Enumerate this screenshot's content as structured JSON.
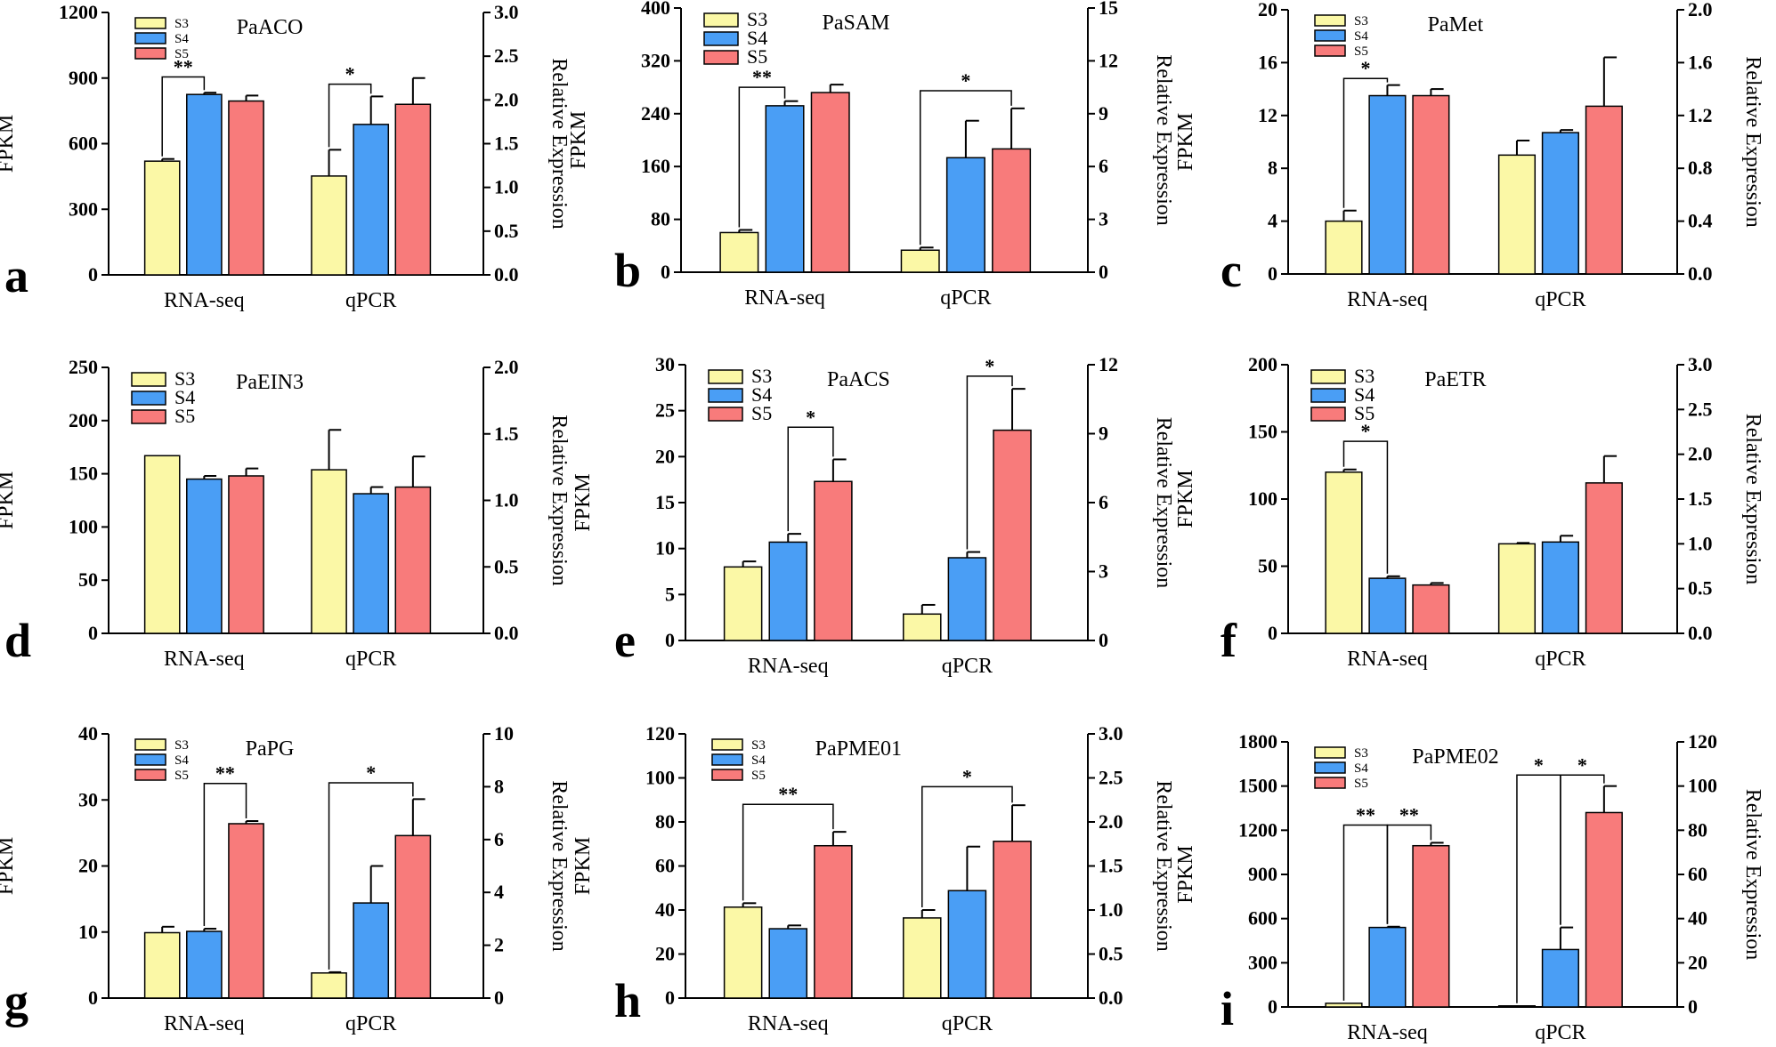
{
  "chart_data": [
    {
      "letter": "a",
      "title": "PaACO",
      "type": "bar",
      "ylabel_left": "FPKM",
      "ylabel_right": "Relative Expression",
      "yticks_left": [
        "0",
        "300",
        "600",
        "900",
        "1200"
      ],
      "ylim_left": [
        0,
        1200
      ],
      "yticks_right": [
        "0.0",
        "0.5",
        "1.0",
        "1.5",
        "2.0",
        "2.5",
        "3.0"
      ],
      "ylim_right": [
        0,
        3.0
      ],
      "categories": [
        "RNA-seq",
        "qPCR"
      ],
      "legend": [
        "S3",
        "S4",
        "S5"
      ],
      "legend_size": "small",
      "series": [
        {
          "name": "S3",
          "color": "#fbf8a6",
          "values": [
            520,
            1.13
          ],
          "errors": [
            10,
            0.3
          ]
        },
        {
          "name": "S4",
          "color": "#4a9ef5",
          "values": [
            825,
            1.72
          ],
          "errors": [
            8,
            0.32
          ]
        },
        {
          "name": "S5",
          "color": "#f87b7b",
          "values": [
            795,
            1.95
          ],
          "errors": [
            25,
            0.3
          ]
        }
      ],
      "significance": [
        {
          "group": 0,
          "from": 0,
          "to": 1,
          "label": "**",
          "y": 905
        },
        {
          "group": 1,
          "from": 0,
          "to": 1,
          "label": "*",
          "y": 2.18
        }
      ]
    },
    {
      "letter": "b",
      "title": "PaSAM",
      "type": "bar",
      "ylabel_left": "FPKM",
      "ylabel_right": "Relative Expression",
      "yticks_left": [
        "0",
        "80",
        "160",
        "240",
        "320",
        "400"
      ],
      "ylim_left": [
        0,
        400
      ],
      "yticks_right": [
        "0",
        "3",
        "6",
        "9",
        "12",
        "15"
      ],
      "ylim_right": [
        0,
        15
      ],
      "categories": [
        "RNA-seq",
        "qPCR"
      ],
      "legend": [
        "S3",
        "S4",
        "S5"
      ],
      "legend_size": "large",
      "series": [
        {
          "name": "S3",
          "color": "#fbf8a6",
          "values": [
            60,
            1.25
          ],
          "errors": [
            4,
            0.15
          ]
        },
        {
          "name": "S4",
          "color": "#4a9ef5",
          "values": [
            252,
            6.5
          ],
          "errors": [
            7,
            2.1
          ]
        },
        {
          "name": "S5",
          "color": "#f87b7b",
          "values": [
            272,
            7.0
          ],
          "errors": [
            12,
            2.3
          ]
        }
      ],
      "significance": [
        {
          "group": 0,
          "from": 0,
          "to": 1,
          "label": "**",
          "y": 280
        },
        {
          "group": 1,
          "from": 0,
          "to": 2,
          "label": "*",
          "y": 10.3
        }
      ]
    },
    {
      "letter": "c",
      "title": "PaMet",
      "type": "bar",
      "ylabel_left": "FPKM",
      "ylabel_right": "Relative Expression",
      "yticks_left": [
        "0",
        "4",
        "8",
        "12",
        "16",
        "20"
      ],
      "ylim_left": [
        0,
        20
      ],
      "yticks_right": [
        "0.0",
        "0.4",
        "0.8",
        "1.2",
        "1.6",
        "2.0"
      ],
      "ylim_right": [
        0,
        2.0
      ],
      "categories": [
        "RNA-seq",
        "qPCR"
      ],
      "legend": [
        "S3",
        "S4",
        "S5"
      ],
      "legend_size": "small",
      "series": [
        {
          "name": "S3",
          "color": "#fbf8a6",
          "values": [
            4.0,
            0.9
          ],
          "errors": [
            0.8,
            0.11
          ]
        },
        {
          "name": "S4",
          "color": "#4a9ef5",
          "values": [
            13.5,
            1.07
          ],
          "errors": [
            0.8,
            0.02
          ]
        },
        {
          "name": "S5",
          "color": "#f87b7b",
          "values": [
            13.5,
            1.27
          ],
          "errors": [
            0.5,
            0.37
          ]
        }
      ],
      "significance": [
        {
          "group": 0,
          "from": 0,
          "to": 1,
          "label": "*",
          "y": 14.8
        }
      ]
    },
    {
      "letter": "d",
      "title": "PaEIN3",
      "type": "bar",
      "ylabel_left": "FPKM",
      "ylabel_right": "Relative Expression",
      "yticks_left": [
        "0",
        "50",
        "100",
        "150",
        "200",
        "250"
      ],
      "ylim_left": [
        0,
        250
      ],
      "yticks_right": [
        "0.0",
        "0.5",
        "1.0",
        "1.5",
        "2.0"
      ],
      "ylim_right": [
        0,
        2.0
      ],
      "categories": [
        "RNA-seq",
        "qPCR"
      ],
      "legend": [
        "S3",
        "S4",
        "S5"
      ],
      "legend_size": "large",
      "series": [
        {
          "name": "S3",
          "color": "#fbf8a6",
          "values": [
            167,
            1.23
          ],
          "errors": [
            0,
            0.3
          ]
        },
        {
          "name": "S4",
          "color": "#4a9ef5",
          "values": [
            145,
            1.05
          ],
          "errors": [
            3,
            0.05
          ]
        },
        {
          "name": "S5",
          "color": "#f87b7b",
          "values": [
            148,
            1.1
          ],
          "errors": [
            7,
            0.23
          ]
        }
      ],
      "significance": []
    },
    {
      "letter": "e",
      "title": "PaACS",
      "type": "bar",
      "ylabel_left": "FPKM",
      "ylabel_right": "Relative Expression",
      "yticks_left": [
        "0",
        "5",
        "10",
        "15",
        "20",
        "25",
        "30"
      ],
      "ylim_left": [
        0,
        30
      ],
      "yticks_right": [
        "0",
        "3",
        "6",
        "9",
        "12"
      ],
      "ylim_right": [
        0,
        12
      ],
      "categories": [
        "RNA-seq",
        "qPCR"
      ],
      "legend": [
        "S3",
        "S4",
        "S5"
      ],
      "legend_size": "large",
      "series": [
        {
          "name": "S3",
          "color": "#fbf8a6",
          "values": [
            8.0,
            1.15
          ],
          "errors": [
            0.6,
            0.4
          ]
        },
        {
          "name": "S4",
          "color": "#4a9ef5",
          "values": [
            10.7,
            3.6
          ],
          "errors": [
            0.9,
            0.25
          ]
        },
        {
          "name": "S5",
          "color": "#f87b7b",
          "values": [
            17.3,
            9.15
          ],
          "errors": [
            2.4,
            1.8
          ]
        }
      ],
      "significance": [
        {
          "group": 0,
          "from": 1,
          "to": 2,
          "label": "*",
          "y": 23.2
        },
        {
          "group": 1,
          "from": 1,
          "to": 2,
          "label": "*",
          "y": 11.5
        }
      ]
    },
    {
      "letter": "f",
      "title": "PaETR",
      "type": "bar",
      "ylabel_left": "FPKM",
      "ylabel_right": "Relative Expression",
      "yticks_left": [
        "0",
        "50",
        "100",
        "150",
        "200"
      ],
      "ylim_left": [
        0,
        200
      ],
      "yticks_right": [
        "0.0",
        "0.5",
        "1.0",
        "1.5",
        "2.0",
        "2.5",
        "3.0"
      ],
      "ylim_right": [
        0,
        3.0
      ],
      "categories": [
        "RNA-seq",
        "qPCR"
      ],
      "legend": [
        "S3",
        "S4",
        "S5"
      ],
      "legend_size": "large",
      "series": [
        {
          "name": "S3",
          "color": "#fbf8a6",
          "values": [
            120,
            1.0
          ],
          "errors": [
            2,
            0.01
          ]
        },
        {
          "name": "S4",
          "color": "#4a9ef5",
          "values": [
            41,
            1.02
          ],
          "errors": [
            1.5,
            0.07
          ]
        },
        {
          "name": "S5",
          "color": "#f87b7b",
          "values": [
            36,
            1.68
          ],
          "errors": [
            1.5,
            0.3
          ]
        }
      ],
      "significance": [
        {
          "group": 0,
          "from": 0,
          "to": 1,
          "label": "*",
          "y": 143
        }
      ]
    },
    {
      "letter": "g",
      "title": "PaPG",
      "type": "bar",
      "ylabel_left": "FPKM",
      "ylabel_right": "Relative Expression",
      "yticks_left": [
        "0",
        "10",
        "20",
        "30",
        "40"
      ],
      "ylim_left": [
        0,
        40
      ],
      "yticks_right": [
        "0",
        "2",
        "4",
        "6",
        "8",
        "10"
      ],
      "ylim_right": [
        0,
        10
      ],
      "categories": [
        "RNA-seq",
        "qPCR"
      ],
      "legend": [
        "S3",
        "S4",
        "S5"
      ],
      "legend_size": "small",
      "series": [
        {
          "name": "S3",
          "color": "#fbf8a6",
          "values": [
            9.9,
            0.95
          ],
          "errors": [
            0.9,
            0.03
          ]
        },
        {
          "name": "S4",
          "color": "#4a9ef5",
          "values": [
            10.1,
            3.6
          ],
          "errors": [
            0.4,
            1.4
          ]
        },
        {
          "name": "S5",
          "color": "#f87b7b",
          "values": [
            26.4,
            6.15
          ],
          "errors": [
            0.4,
            1.38
          ]
        }
      ],
      "significance": [
        {
          "group": 0,
          "from": 1,
          "to": 2,
          "label": "**",
          "y": 32.5
        },
        {
          "group": 1,
          "from": 0,
          "to": 2,
          "label": "*",
          "y": 8.15
        }
      ]
    },
    {
      "letter": "h",
      "title": "PaPME01",
      "type": "bar",
      "ylabel_left": "FPKM",
      "ylabel_right": "Relative Expression",
      "yticks_left": [
        "0",
        "20",
        "40",
        "60",
        "80",
        "100",
        "120"
      ],
      "ylim_left": [
        0,
        120
      ],
      "yticks_right": [
        "0.0",
        "0.5",
        "1.0",
        "1.5",
        "2.0",
        "2.5",
        "3.0"
      ],
      "ylim_right": [
        0,
        3.0
      ],
      "categories": [
        "RNA-seq",
        "qPCR"
      ],
      "legend": [
        "S3",
        "S4",
        "S5"
      ],
      "legend_size": "small",
      "series": [
        {
          "name": "S3",
          "color": "#fbf8a6",
          "values": [
            41.3,
            0.91
          ],
          "errors": [
            1.8,
            0.09
          ]
        },
        {
          "name": "S4",
          "color": "#4a9ef5",
          "values": [
            31.5,
            1.22
          ],
          "errors": [
            1.5,
            0.5
          ]
        },
        {
          "name": "S5",
          "color": "#f87b7b",
          "values": [
            69.2,
            1.78
          ],
          "errors": [
            6.3,
            0.41
          ]
        }
      ],
      "significance": [
        {
          "group": 0,
          "from": 0,
          "to": 2,
          "label": "**",
          "y": 88
        },
        {
          "group": 1,
          "from": 0,
          "to": 2,
          "label": "*",
          "y": 2.4
        }
      ]
    },
    {
      "letter": "i",
      "title": "PaPME02",
      "type": "bar",
      "ylabel_left": "FPKM",
      "ylabel_right": "Relative Expression",
      "yticks_left": [
        "0",
        "300",
        "600",
        "900",
        "1200",
        "1500",
        "1800"
      ],
      "ylim_left": [
        0,
        1800
      ],
      "yticks_right": [
        "0",
        "20",
        "40",
        "60",
        "80",
        "100",
        "120"
      ],
      "ylim_right": [
        0,
        120
      ],
      "categories": [
        "RNA-seq",
        "qPCR"
      ],
      "legend": [
        "S3",
        "S4",
        "S5"
      ],
      "legend_size": "small",
      "series": [
        {
          "name": "S3",
          "color": "#fbf8a6",
          "values": [
            25,
            0.5
          ],
          "errors": [
            0,
            0
          ]
        },
        {
          "name": "S4",
          "color": "#4a9ef5",
          "values": [
            540,
            26
          ],
          "errors": [
            5,
            10
          ]
        },
        {
          "name": "S5",
          "color": "#f87b7b",
          "values": [
            1095,
            88
          ],
          "errors": [
            20,
            12
          ]
        }
      ],
      "significance": [
        {
          "group": 0,
          "from": 0,
          "to": 1,
          "label": "**",
          "y": 1235
        },
        {
          "group": 0,
          "from": 1,
          "to": 2,
          "label": "**",
          "y": 1235
        },
        {
          "group": 1,
          "from": 0,
          "to": 1,
          "label": "*",
          "y": 105
        },
        {
          "group": 1,
          "from": 1,
          "to": 2,
          "label": "*",
          "y": 105
        }
      ]
    }
  ]
}
